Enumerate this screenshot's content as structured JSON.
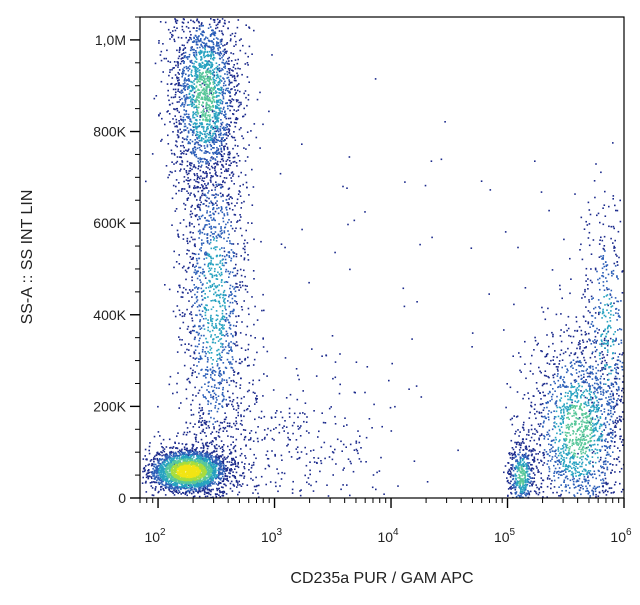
{
  "chart_data": {
    "type": "scatter",
    "xlabel": "CD235a PUR / GAM APC",
    "ylabel": "SS-A :: SS INT LIN",
    "x_scale": "log",
    "xlim": [
      70,
      1000000
    ],
    "ylim": [
      0,
      1050000
    ],
    "x_ticks": [
      {
        "value": 100,
        "base": "10",
        "exp": "2"
      },
      {
        "value": 1000,
        "base": "10",
        "exp": "3"
      },
      {
        "value": 10000,
        "base": "10",
        "exp": "4"
      },
      {
        "value": 100000,
        "base": "10",
        "exp": "5"
      },
      {
        "value": 1000000,
        "base": "10",
        "exp": "6"
      }
    ],
    "y_ticks": [
      {
        "value": 0,
        "label": "0"
      },
      {
        "value": 200000,
        "label": "200K"
      },
      {
        "value": 400000,
        "label": "400K"
      },
      {
        "value": 600000,
        "label": "600K"
      },
      {
        "value": 800000,
        "label": "800K"
      },
      {
        "value": 1000000,
        "label": "1,0M"
      }
    ],
    "populations": [
      {
        "x_center": 180,
        "y_center": 60000,
        "x_spread_decades": 0.16,
        "y_spread": 22000,
        "points": 2600,
        "density": "high"
      },
      {
        "x_center": 250,
        "y_center": 880000,
        "x_spread_decades": 0.15,
        "y_spread": 110000,
        "points": 1900,
        "density": "medium"
      },
      {
        "x_center": 300,
        "y_center": 430000,
        "x_spread_decades": 0.15,
        "y_spread": 220000,
        "points": 1500,
        "density": "low"
      },
      {
        "x_center": 130000,
        "y_center": 50000,
        "x_spread_decades": 0.06,
        "y_spread": 40000,
        "points": 450,
        "density": "medium"
      },
      {
        "x_center": 400000,
        "y_center": 150000,
        "x_spread_decades": 0.22,
        "y_spread": 110000,
        "points": 1600,
        "density": "medium"
      },
      {
        "x_center": 700000,
        "y_center": 350000,
        "x_spread_decades": 0.12,
        "y_spread": 160000,
        "points": 500,
        "density": "low"
      },
      {
        "x_center": 1000,
        "y_center": 100000,
        "x_spread_decades": 0.5,
        "y_spread": 90000,
        "points": 450,
        "density": "sparse"
      },
      {
        "x_center": 10000,
        "y_center": 500000,
        "x_spread_decades": 1.2,
        "y_spread": 300000,
        "points": 70,
        "density": "sparse"
      }
    ],
    "colormap": [
      "#1b2a8c",
      "#2c5fb8",
      "#27a2c0",
      "#58c79a",
      "#a8dd3c",
      "#f2e414"
    ],
    "grid": false,
    "legend": "none"
  }
}
